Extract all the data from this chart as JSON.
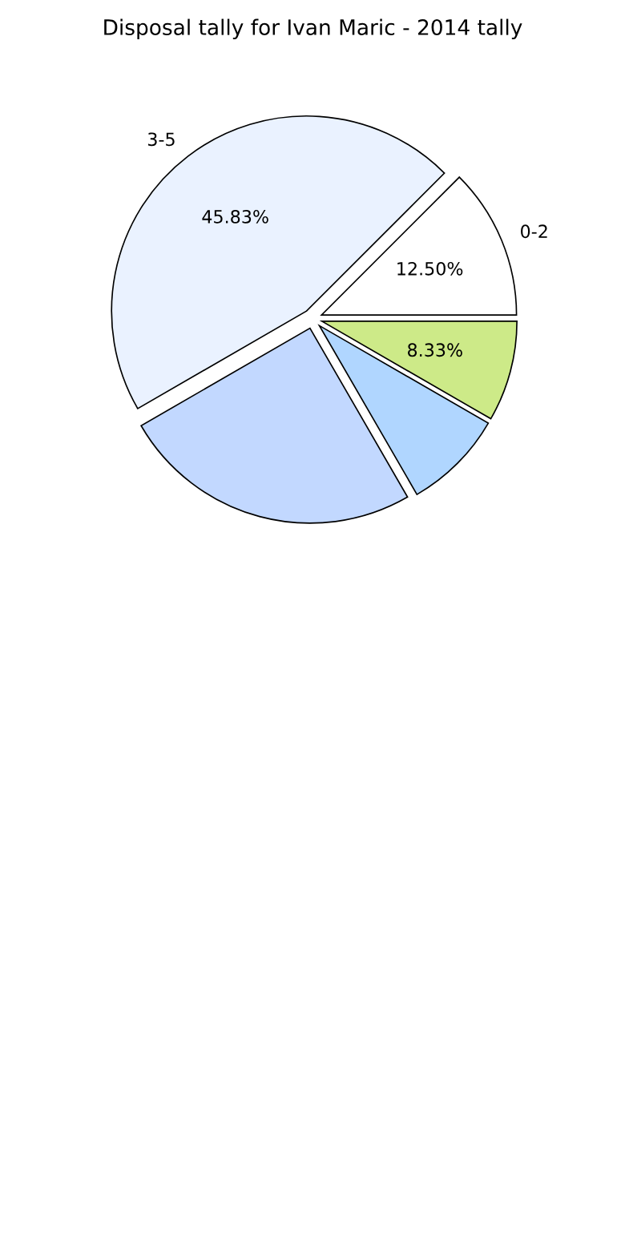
{
  "chart_data": {
    "type": "pie",
    "title": "Disposal tally for Ivan Maric - 2014 tally",
    "categories": [
      "0-2",
      "3-5",
      null,
      null,
      null
    ],
    "values": [
      12.5,
      45.83,
      25,
      8.33,
      8.33
    ],
    "colors": [
      "#ffffff",
      "#eaf2ff",
      "#c2d8ff",
      "#b0d6ff",
      "#cdea88"
    ],
    "value_labels": [
      "12.50%",
      "45.83%",
      null,
      null,
      "8.33%"
    ],
    "legend": false
  }
}
